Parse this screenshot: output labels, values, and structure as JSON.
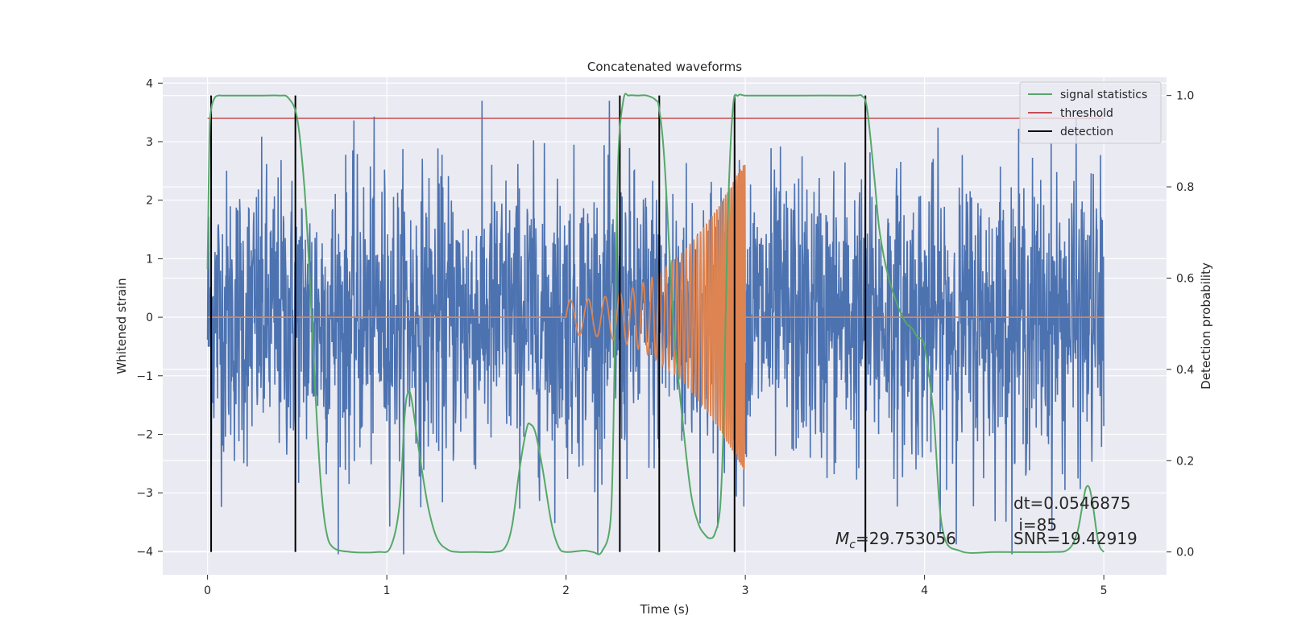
{
  "chart_data": {
    "type": "line",
    "title": "Concatenated waveforms",
    "xlabel": "Time (s)",
    "ylabel_left": "Whitened strain",
    "ylabel_right": "Detection probability",
    "xlim": [
      -0.25,
      5.35
    ],
    "ylim_left": [
      -4.4,
      4.1
    ],
    "ylim_right": [
      -0.05,
      1.04
    ],
    "x_ticks": [
      0,
      1,
      2,
      3,
      4,
      5
    ],
    "y_left_ticks": [
      4,
      3,
      2,
      1,
      0,
      -1,
      -2,
      -3,
      -4
    ],
    "y_left_tick_labels": [
      "4",
      "3",
      "2",
      "1",
      "0",
      "−1",
      "−2",
      "−3",
      "−4"
    ],
    "y_right_ticks": [
      1.0,
      0.8,
      0.6,
      0.4,
      0.2,
      0.0
    ],
    "y_right_tick_labels": [
      "1.0",
      "0.8",
      "0.6",
      "0.4",
      "0.2",
      "0.0"
    ],
    "grid": true,
    "legend_position": "top-right",
    "legend": [
      {
        "name": "signal statistics",
        "color": "#55a868"
      },
      {
        "name": "threshold",
        "color": "#c44e52"
      },
      {
        "name": "detection",
        "color": "#000000"
      }
    ],
    "colors": {
      "strain": "#4c72b0",
      "injected_signal": "#dd8452",
      "signal_statistics": "#55a868",
      "threshold": "#c44e52",
      "detection": "#000000",
      "axes_bg": "#eaeaf2",
      "grid": "#ffffff"
    },
    "threshold": {
      "x": [
        0,
        5
      ],
      "y_prob": 0.95
    },
    "detections": [
      0.02,
      0.49,
      2.3,
      2.52,
      2.94,
      3.67
    ],
    "signal_statistics": {
      "x": [
        0,
        0.01,
        0.02,
        0.04,
        0.06,
        0.08,
        0.1,
        0.2,
        0.3,
        0.4,
        0.45,
        0.5,
        0.54,
        0.57,
        0.6,
        0.63,
        0.66,
        0.7,
        0.8,
        0.95,
        1.02,
        1.07,
        1.1,
        1.12,
        1.14,
        1.18,
        1.23,
        1.28,
        1.34,
        1.4,
        1.5,
        1.6,
        1.66,
        1.7,
        1.74,
        1.78,
        1.8,
        1.83,
        1.87,
        1.92,
        1.96,
        2.0,
        2.1,
        2.15,
        2.2,
        2.25,
        2.27,
        2.29,
        2.32,
        2.35,
        2.4,
        2.45,
        2.5,
        2.52,
        2.55,
        2.6,
        2.66,
        2.7,
        2.74,
        2.77,
        2.8,
        2.83,
        2.86,
        2.88,
        2.9,
        2.93,
        2.96,
        3.0,
        3.1,
        3.3,
        3.6,
        3.65,
        3.68,
        3.72,
        3.75,
        3.8,
        3.86,
        3.9,
        3.93,
        3.96,
        4.0,
        4.05,
        4.1,
        4.2,
        4.4,
        4.7,
        4.8,
        4.85,
        4.88,
        4.9,
        4.92,
        4.94,
        4.97,
        5.0
      ],
      "y": [
        0.62,
        0.9,
        0.97,
        0.995,
        1.0,
        1.0,
        1.0,
        1.0,
        1.0,
        1.0,
        0.995,
        0.95,
        0.8,
        0.6,
        0.36,
        0.16,
        0.05,
        0.01,
        0.0,
        0.0,
        0.01,
        0.1,
        0.3,
        0.35,
        0.33,
        0.22,
        0.1,
        0.03,
        0.005,
        0.0,
        0.0,
        0.0,
        0.01,
        0.06,
        0.18,
        0.27,
        0.28,
        0.26,
        0.18,
        0.06,
        0.01,
        0.0,
        0.003,
        0.0,
        0.001,
        0.08,
        0.4,
        0.85,
        0.99,
        1.0,
        1.0,
        1.0,
        0.99,
        0.97,
        0.85,
        0.5,
        0.25,
        0.12,
        0.06,
        0.04,
        0.03,
        0.04,
        0.1,
        0.3,
        0.7,
        0.97,
        1.0,
        1.0,
        1.0,
        1.0,
        1.0,
        0.999,
        0.97,
        0.82,
        0.7,
        0.6,
        0.53,
        0.5,
        0.49,
        0.47,
        0.45,
        0.3,
        0.05,
        0.002,
        0.0,
        0.0,
        0.005,
        0.04,
        0.1,
        0.14,
        0.14,
        0.1,
        0.02,
        0.0
      ]
    },
    "strain_series": {
      "name": "Whitened strain",
      "x_range": [
        0,
        5
      ],
      "typical_amplitude": 1.3,
      "y_min": -4.05,
      "y_max": 3.7
    },
    "injected_signal": {
      "x_range": [
        0,
        5
      ],
      "chirp_start": 2.0,
      "chirp_end": 3.0,
      "peak_amplitude": 2.7
    },
    "annotations": {
      "mc_symbol": "M",
      "mc_sub": "c",
      "mc_value": "=29.753056",
      "dt": "dt=0.0546875",
      "i": " i=85",
      "snr": "SNR=19.42919"
    }
  }
}
